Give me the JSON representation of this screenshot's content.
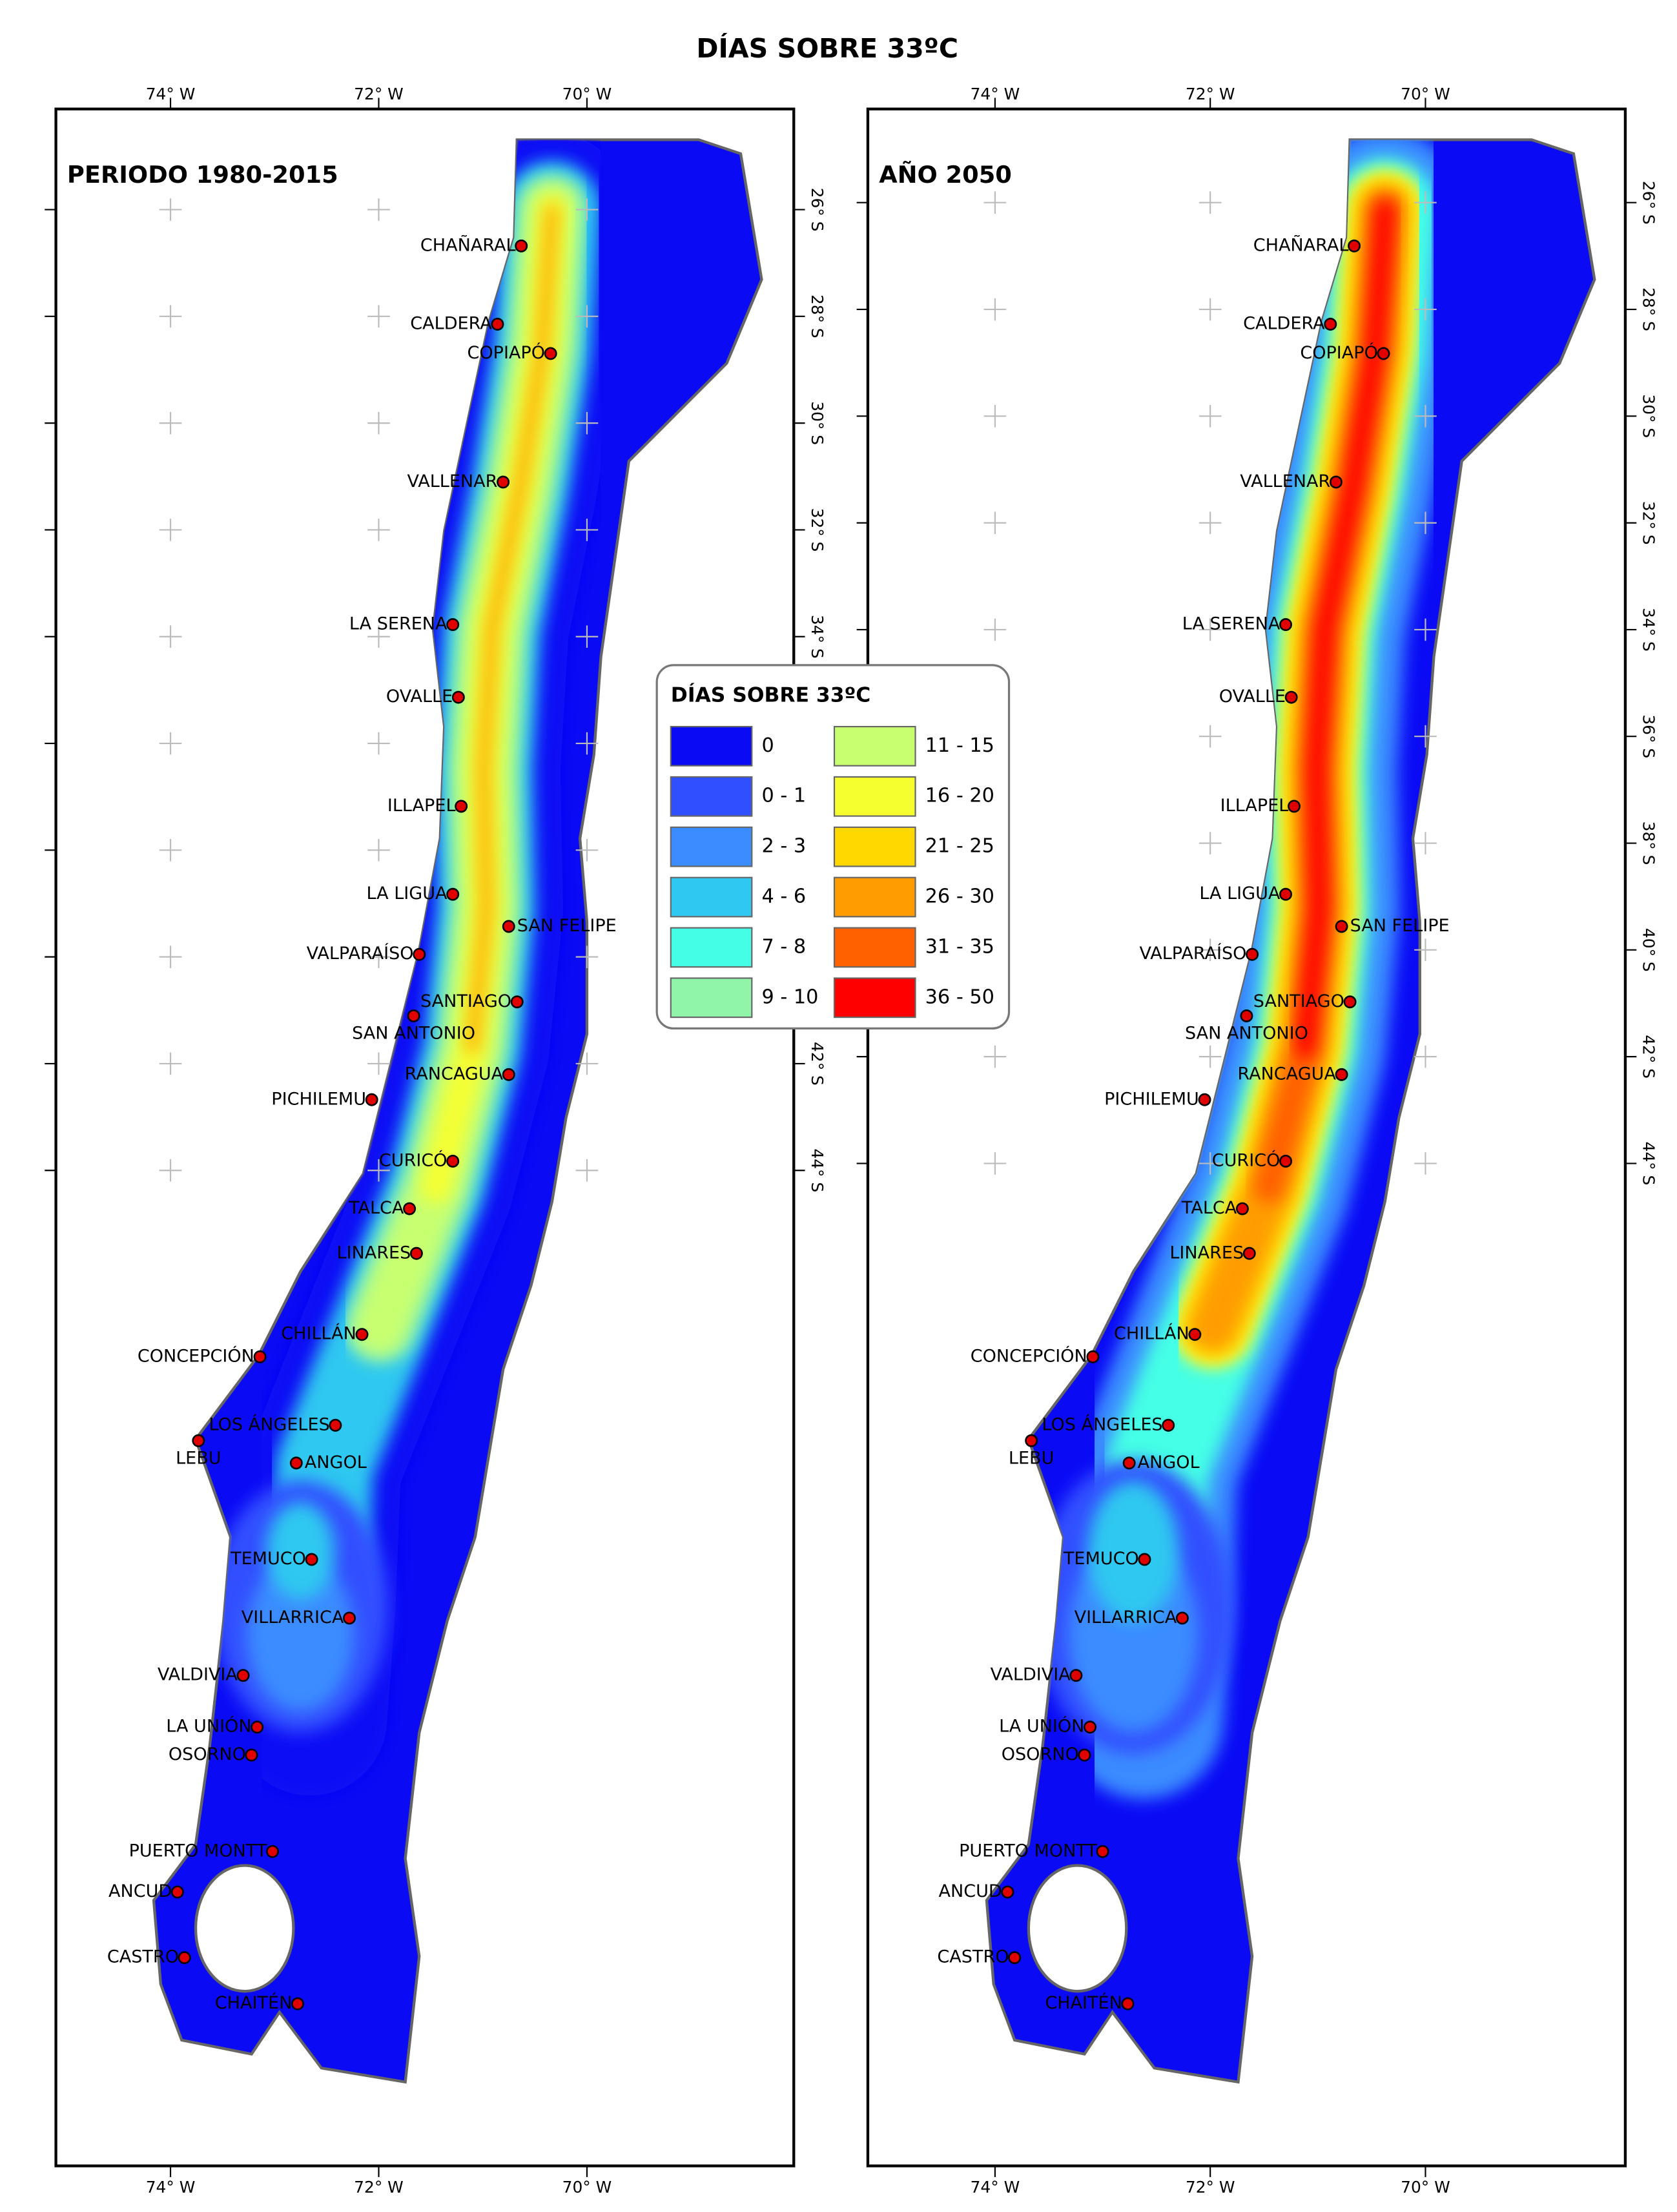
{
  "title": "DÍAS SOBRE 33ºC",
  "panels": [
    {
      "title": "PERIODO 1980-2015"
    },
    {
      "title": "AÑO 2050"
    }
  ],
  "longitude_labels": [
    "74° W",
    "72° W",
    "70° W"
  ],
  "latitude_labels": [
    "26° S",
    "28° S",
    "30° S",
    "32° S",
    "34° S",
    "36° S",
    "38° S",
    "40° S",
    "42° S",
    "44° S"
  ],
  "cities": [
    "CHAÑARAL",
    "CALDERA",
    "COPIAPÓ",
    "VALLENAR",
    "LA SERENA",
    "OVALLE",
    "ILLAPEL",
    "LA LIGUA",
    "SAN FELIPE",
    "VALPARAÍSO",
    "SANTIAGO",
    "SAN ANTONIO",
    "RANCAGUA",
    "PICHILEMU",
    "CURICÓ",
    "TALCA",
    "LINARES",
    "CHILLÁN",
    "CONCEPCIÓN",
    "LOS ÁNGELES",
    "LEBU",
    "ANGOL",
    "TEMUCO",
    "VILLARRICA",
    "VALDIVIA",
    "LA UNIÓN",
    "OSORNO",
    "PUERTO MONTT",
    "ANCUD",
    "CASTRO",
    "CHAITÉN"
  ],
  "legend": {
    "title": "DÍAS SOBRE 33ºC",
    "items": [
      {
        "label": "0",
        "color": "#0a0af5"
      },
      {
        "label": "0 - 1",
        "color": "#3050ff"
      },
      {
        "label": "2 - 3",
        "color": "#3a8cff"
      },
      {
        "label": "4 - 6",
        "color": "#2fc8f0"
      },
      {
        "label": "7 - 8",
        "color": "#44ffe6"
      },
      {
        "label": "9 - 10",
        "color": "#90f5a8"
      },
      {
        "label": "11 - 15",
        "color": "#c8ff70"
      },
      {
        "label": "16 - 20",
        "color": "#f5ff30"
      },
      {
        "label": "21 - 25",
        "color": "#ffd800"
      },
      {
        "label": "26 - 30",
        "color": "#ff9d00"
      },
      {
        "label": "31 - 35",
        "color": "#ff6000"
      },
      {
        "label": "36 - 50",
        "color": "#ff0000"
      }
    ]
  }
}
